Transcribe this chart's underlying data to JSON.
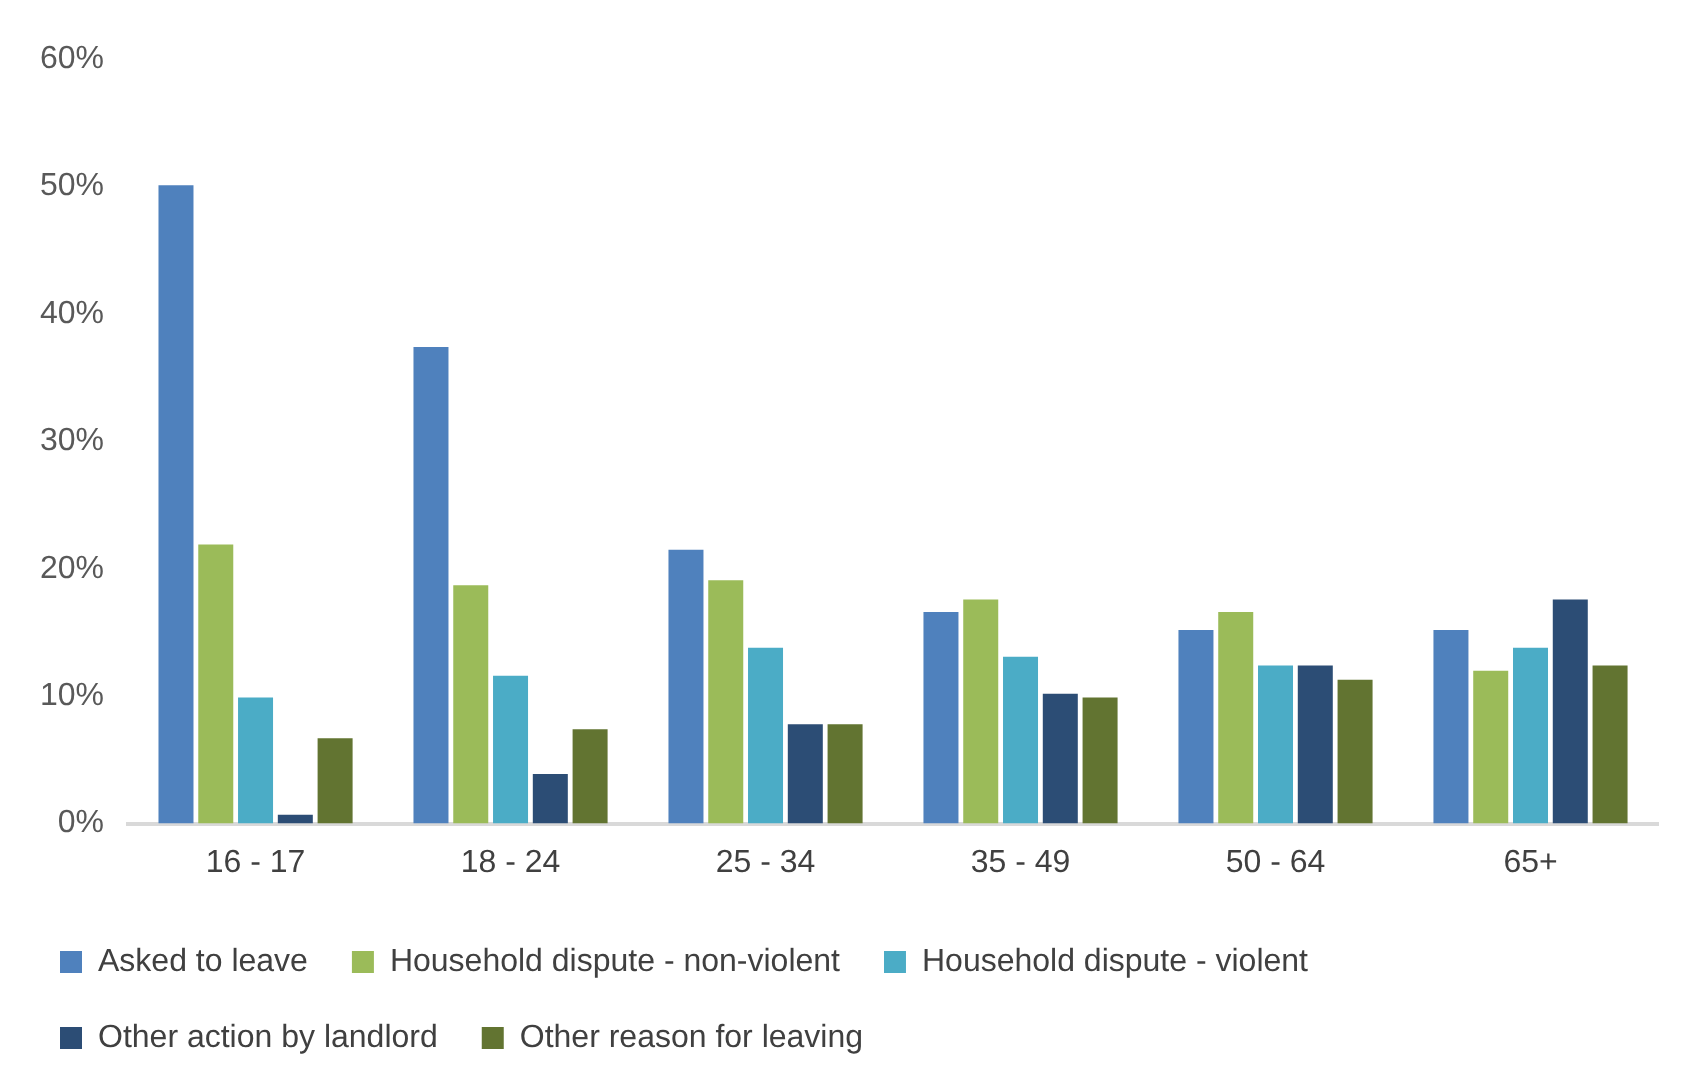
{
  "chart_data": {
    "type": "bar",
    "categories": [
      "16 - 17",
      "18 - 24",
      "25 - 34",
      "35 - 49",
      "50 - 64",
      "65+"
    ],
    "series": [
      {
        "name": "Asked to leave",
        "color": "#4f81bd",
        "values": [
          50.1,
          37.4,
          21.5,
          16.6,
          15.2,
          15.2
        ]
      },
      {
        "name": "Household dispute - non-violent",
        "color": "#9bbb59",
        "values": [
          21.9,
          18.7,
          19.1,
          17.6,
          16.6,
          12.0
        ]
      },
      {
        "name": "Household dispute - violent",
        "color": "#4bacc6",
        "values": [
          9.9,
          11.6,
          13.8,
          13.1,
          12.4,
          13.8
        ]
      },
      {
        "name": "Other action by landlord",
        "color": "#2c4d75",
        "values": [
          0.7,
          3.9,
          7.8,
          10.2,
          12.4,
          17.6
        ]
      },
      {
        "name": "Other reason for leaving",
        "color": "#627431",
        "values": [
          6.7,
          7.4,
          7.8,
          9.9,
          11.3,
          12.4
        ]
      }
    ],
    "ylim": [
      0,
      60
    ],
    "yticks": [
      {
        "value": 0,
        "label": "0%"
      },
      {
        "value": 10,
        "label": "10%"
      },
      {
        "value": 20,
        "label": "20%"
      },
      {
        "value": 30,
        "label": "30%"
      },
      {
        "value": 40,
        "label": "40%"
      },
      {
        "value": 50,
        "label": "50%"
      },
      {
        "value": 60,
        "label": "60%"
      }
    ],
    "grid": false,
    "legend": "bottom"
  }
}
